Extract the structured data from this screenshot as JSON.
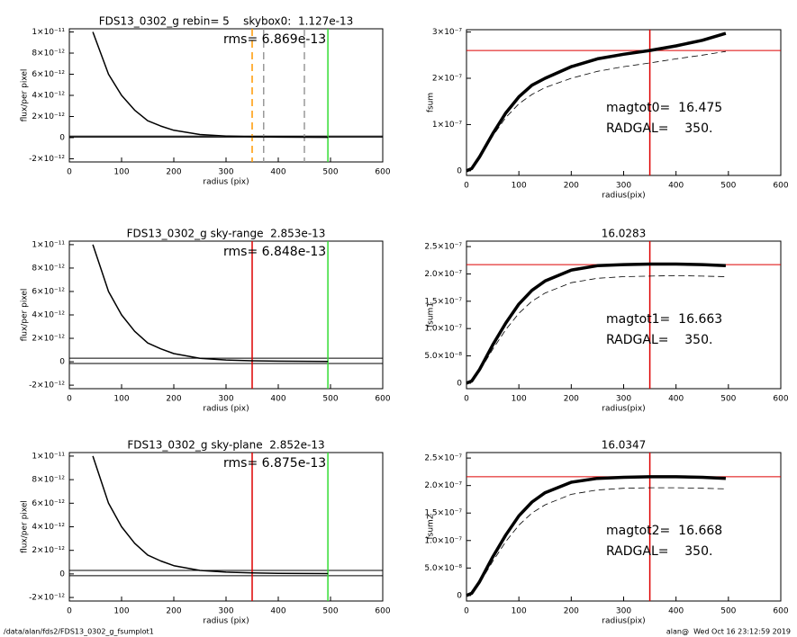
{
  "footer": {
    "left": "/data/alan/fds2/FDS13_0302_g_fsumplot1",
    "right": "alan@  Wed Oct 16 23:12:59 2019"
  },
  "chart_data": [
    {
      "type": "line",
      "title": "FDS13_0302_g rebin= 5    skybox0:  1.127e-13",
      "xlabel": "radius (pix)",
      "ylabel": "flux/per pixel",
      "annotations": [
        "rms= 6.869e-13"
      ],
      "xlim": [
        0,
        600
      ],
      "xticks": [
        0,
        100,
        200,
        300,
        400,
        500,
        600
      ],
      "ylim": [
        -2.3e-12,
        1.03e-11
      ],
      "yticks": [
        {
          "value": -2e-12,
          "label": "-2×10⁻¹²"
        },
        0,
        {
          "value": 2e-12,
          "label": "2×10⁻¹²"
        },
        {
          "value": 4e-12,
          "label": "4×10⁻¹²"
        },
        {
          "value": 6e-12,
          "label": "6×10⁻¹²"
        },
        {
          "value": 8e-12,
          "label": "8×10⁻¹²"
        },
        {
          "value": 1e-11,
          "label": "1×10⁻¹¹"
        }
      ],
      "series": [
        {
          "color": "#000000",
          "x": [
            45,
            60,
            75,
            100,
            125,
            150,
            175,
            200,
            250,
            300,
            350,
            400,
            495
          ],
          "values": [
            1e-11,
            8e-12,
            6e-12,
            4e-12,
            2.6e-12,
            1.6e-12,
            1.1e-12,
            7e-13,
            3e-13,
            1.5e-13,
            8e-14,
            5e-14,
            3e-14
          ]
        }
      ],
      "vlines": [
        {
          "x": 350,
          "color": "#ff9900",
          "dash": true
        },
        {
          "x": 372,
          "color": "#999999",
          "dash": true
        },
        {
          "x": 450,
          "color": "#999999",
          "dash": true
        },
        {
          "x": 495,
          "color": "#33dd33",
          "dash": false
        }
      ],
      "hlines": [
        {
          "y": 1.5e-13,
          "color": "#000000"
        },
        {
          "y": 5e-14,
          "color": "#000000"
        }
      ]
    },
    {
      "type": "line",
      "xlabel": "radius(pix)",
      "ylabel": "fsum",
      "annotations": [
        "magtot0=  16.475",
        "RADGAL=    350."
      ],
      "xlim": [
        0,
        600
      ],
      "xticks": [
        0,
        100,
        200,
        300,
        400,
        500,
        600
      ],
      "ylim": [
        -1e-08,
        3.05e-07
      ],
      "yticks": [
        0,
        {
          "value": 1e-07,
          "label": "1×10⁻⁷"
        },
        {
          "value": 2e-07,
          "label": "2×10⁻⁷"
        },
        {
          "value": 3e-07,
          "label": "3×10⁻⁷"
        }
      ],
      "series": [
        {
          "color": "#000000",
          "x": [
            0,
            10,
            25,
            50,
            75,
            100,
            125,
            150,
            200,
            250,
            300,
            350,
            400,
            450,
            495
          ],
          "values": [
            0,
            5e-09,
            3e-08,
            8e-08,
            1.25e-07,
            1.6e-07,
            1.85e-07,
            2e-07,
            2.25e-07,
            2.42e-07,
            2.52e-07,
            2.6e-07,
            2.7e-07,
            2.82e-07,
            2.97e-07
          ]
        },
        {
          "color": "#000000",
          "dash": true,
          "x": [
            0,
            10,
            25,
            50,
            75,
            100,
            125,
            150,
            200,
            250,
            300,
            350,
            400,
            450,
            495
          ],
          "values": [
            0,
            4e-09,
            2.8e-08,
            7.5e-08,
            1.15e-07,
            1.45e-07,
            1.65e-07,
            1.8e-07,
            2e-07,
            2.15e-07,
            2.25e-07,
            2.33e-07,
            2.42e-07,
            2.5e-07,
            2.58e-07
          ]
        }
      ],
      "vlines": [
        {
          "x": 350,
          "color": "#dd0000",
          "dash": false
        }
      ],
      "hlines": [
        {
          "y": 2.6e-07,
          "color": "#dd0000"
        }
      ]
    },
    {
      "type": "line",
      "title": "FDS13_0302_g sky-range  2.853e-13",
      "xlabel": "radius (pix)",
      "ylabel": "flux/per pixel",
      "annotations": [
        "rms= 6.848e-13"
      ],
      "xlim": [
        0,
        600
      ],
      "xticks": [
        0,
        100,
        200,
        300,
        400,
        500,
        600
      ],
      "ylim": [
        -2.3e-12,
        1.03e-11
      ],
      "yticks": [
        {
          "value": -2e-12,
          "label": "-2×10⁻¹²"
        },
        0,
        {
          "value": 2e-12,
          "label": "2×10⁻¹²"
        },
        {
          "value": 4e-12,
          "label": "4×10⁻¹²"
        },
        {
          "value": 6e-12,
          "label": "6×10⁻¹²"
        },
        {
          "value": 8e-12,
          "label": "8×10⁻¹²"
        },
        {
          "value": 1e-11,
          "label": "1×10⁻¹¹"
        }
      ],
      "series": [
        {
          "color": "#000000",
          "x": [
            45,
            60,
            75,
            100,
            125,
            150,
            175,
            200,
            250,
            300,
            350,
            400,
            495
          ],
          "values": [
            1e-11,
            8e-12,
            6e-12,
            4e-12,
            2.6e-12,
            1.6e-12,
            1.1e-12,
            7e-13,
            3e-13,
            1.5e-13,
            8e-14,
            5e-14,
            3e-14
          ]
        }
      ],
      "vlines": [
        {
          "x": 350,
          "color": "#dd0000",
          "dash": false
        },
        {
          "x": 495,
          "color": "#33dd33",
          "dash": false
        }
      ],
      "hlines": [
        {
          "y": 3e-13,
          "color": "#000000"
        },
        {
          "y": -1.5e-13,
          "color": "#000000"
        }
      ]
    },
    {
      "type": "line",
      "title": "16.0283",
      "xlabel": "radius(pix)",
      "ylabel": "fsum1",
      "annotations": [
        "magtot1=  16.663",
        "RADGAL=    350."
      ],
      "xlim": [
        0,
        600
      ],
      "xticks": [
        0,
        100,
        200,
        300,
        400,
        500,
        600
      ],
      "ylim": [
        -1e-08,
        2.6e-07
      ],
      "yticks": [
        0,
        {
          "value": 5e-08,
          "label": "5.0×10⁻⁸"
        },
        {
          "value": 1e-07,
          "label": "1.0×10⁻⁷"
        },
        {
          "value": 1.5e-07,
          "label": "1.5×10⁻⁷"
        },
        {
          "value": 2e-07,
          "label": "2.0×10⁻⁷"
        },
        {
          "value": 2.5e-07,
          "label": "2.5×10⁻⁷"
        }
      ],
      "series": [
        {
          "color": "#000000",
          "x": [
            0,
            10,
            25,
            50,
            75,
            100,
            125,
            150,
            200,
            250,
            300,
            350,
            400,
            450,
            495
          ],
          "values": [
            0,
            4e-09,
            2.5e-08,
            7e-08,
            1.1e-07,
            1.45e-07,
            1.7e-07,
            1.87e-07,
            2.07e-07,
            2.15e-07,
            2.17e-07,
            2.18e-07,
            2.18e-07,
            2.17e-07,
            2.15e-07
          ]
        },
        {
          "color": "#000000",
          "dash": true,
          "x": [
            0,
            10,
            25,
            50,
            75,
            100,
            125,
            150,
            200,
            250,
            300,
            350,
            400,
            450,
            495
          ],
          "values": [
            0,
            3e-09,
            2.2e-08,
            6.2e-08,
            9.8e-08,
            1.28e-07,
            1.5e-07,
            1.65e-07,
            1.84e-07,
            1.92e-07,
            1.95e-07,
            1.96e-07,
            1.97e-07,
            1.96e-07,
            1.95e-07
          ]
        }
      ],
      "vlines": [
        {
          "x": 350,
          "color": "#dd0000",
          "dash": false
        }
      ],
      "hlines": [
        {
          "y": 2.17e-07,
          "color": "#dd0000"
        }
      ]
    },
    {
      "type": "line",
      "title": "FDS13_0302_g sky-plane  2.852e-13",
      "xlabel": "radius (pix)",
      "ylabel": "flux/per pixel",
      "annotations": [
        "rms= 6.875e-13"
      ],
      "xlim": [
        0,
        600
      ],
      "xticks": [
        0,
        100,
        200,
        300,
        400,
        500,
        600
      ],
      "ylim": [
        -2.3e-12,
        1.03e-11
      ],
      "yticks": [
        {
          "value": -2e-12,
          "label": "-2×10⁻¹²"
        },
        0,
        {
          "value": 2e-12,
          "label": "2×10⁻¹²"
        },
        {
          "value": 4e-12,
          "label": "4×10⁻¹²"
        },
        {
          "value": 6e-12,
          "label": "6×10⁻¹²"
        },
        {
          "value": 8e-12,
          "label": "8×10⁻¹²"
        },
        {
          "value": 1e-11,
          "label": "1×10⁻¹¹"
        }
      ],
      "series": [
        {
          "color": "#000000",
          "x": [
            45,
            60,
            75,
            100,
            125,
            150,
            175,
            200,
            250,
            300,
            350,
            400,
            495
          ],
          "values": [
            1e-11,
            8e-12,
            6e-12,
            4e-12,
            2.6e-12,
            1.6e-12,
            1.1e-12,
            7e-13,
            3e-13,
            1.5e-13,
            8e-14,
            5e-14,
            3e-14
          ]
        }
      ],
      "vlines": [
        {
          "x": 350,
          "color": "#dd0000",
          "dash": false
        },
        {
          "x": 495,
          "color": "#33dd33",
          "dash": false
        }
      ],
      "hlines": [
        {
          "y": 3e-13,
          "color": "#000000"
        },
        {
          "y": -1.5e-13,
          "color": "#000000"
        }
      ]
    },
    {
      "type": "line",
      "title": "16.0347",
      "xlabel": "radius(pix)",
      "ylabel": "fsum2",
      "annotations": [
        "magtot2=  16.668",
        "RADGAL=    350."
      ],
      "xlim": [
        0,
        600
      ],
      "xticks": [
        0,
        100,
        200,
        300,
        400,
        500,
        600
      ],
      "ylim": [
        -1e-08,
        2.6e-07
      ],
      "yticks": [
        0,
        {
          "value": 5e-08,
          "label": "5.0×10⁻⁸"
        },
        {
          "value": 1e-07,
          "label": "1.0×10⁻⁷"
        },
        {
          "value": 1.5e-07,
          "label": "1.5×10⁻⁷"
        },
        {
          "value": 2e-07,
          "label": "2.0×10⁻⁷"
        },
        {
          "value": 2.5e-07,
          "label": "2.5×10⁻⁷"
        }
      ],
      "series": [
        {
          "color": "#000000",
          "x": [
            0,
            10,
            25,
            50,
            75,
            100,
            125,
            150,
            200,
            250,
            300,
            350,
            400,
            450,
            495
          ],
          "values": [
            0,
            4e-09,
            2.5e-08,
            7e-08,
            1.1e-07,
            1.45e-07,
            1.7e-07,
            1.87e-07,
            2.06e-07,
            2.13e-07,
            2.15e-07,
            2.16e-07,
            2.16e-07,
            2.15e-07,
            2.13e-07
          ]
        },
        {
          "color": "#000000",
          "dash": true,
          "x": [
            0,
            10,
            25,
            50,
            75,
            100,
            125,
            150,
            200,
            250,
            300,
            350,
            400,
            450,
            495
          ],
          "values": [
            0,
            3e-09,
            2.2e-08,
            6.2e-08,
            9.8e-08,
            1.28e-07,
            1.5e-07,
            1.65e-07,
            1.84e-07,
            1.92e-07,
            1.95e-07,
            1.96e-07,
            1.96e-07,
            1.95e-07,
            1.94e-07
          ]
        }
      ],
      "vlines": [
        {
          "x": 350,
          "color": "#dd0000",
          "dash": false
        }
      ],
      "hlines": [
        {
          "y": 2.16e-07,
          "color": "#dd0000"
        }
      ]
    }
  ]
}
